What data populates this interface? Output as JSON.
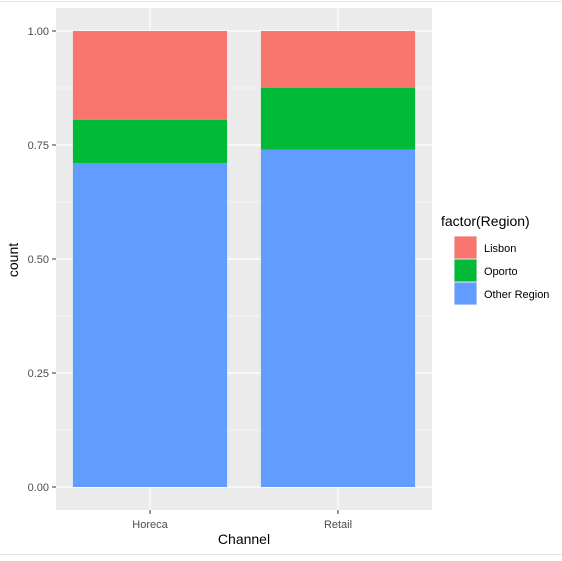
{
  "chart_data": {
    "type": "bar",
    "stacked": true,
    "position": "fill",
    "categories": [
      "Horeca",
      "Retail"
    ],
    "series": [
      {
        "name": "Other Region",
        "values": [
          0.71,
          0.74
        ]
      },
      {
        "name": "Oporto",
        "values": [
          0.095,
          0.135
        ]
      },
      {
        "name": "Lisbon",
        "values": [
          0.195,
          0.125
        ]
      }
    ],
    "xlabel": "Channel",
    "ylabel": "count",
    "ylim": [
      0,
      1
    ],
    "yticks": [
      "0.00",
      "0.25",
      "0.50",
      "0.75",
      "1.00"
    ],
    "ytick_values": [
      0,
      0.25,
      0.5,
      0.75,
      1
    ],
    "legend": {
      "title": "factor(Region)",
      "placement": "right",
      "entries": [
        "Lisbon",
        "Oporto",
        "Other Region"
      ]
    },
    "grid": true,
    "colors": {
      "Lisbon": "#F8766D",
      "Oporto": "#00BA38",
      "Other Region": "#619CFF",
      "panel": "#EBEBEB",
      "grid": "#FFFFFF"
    }
  }
}
